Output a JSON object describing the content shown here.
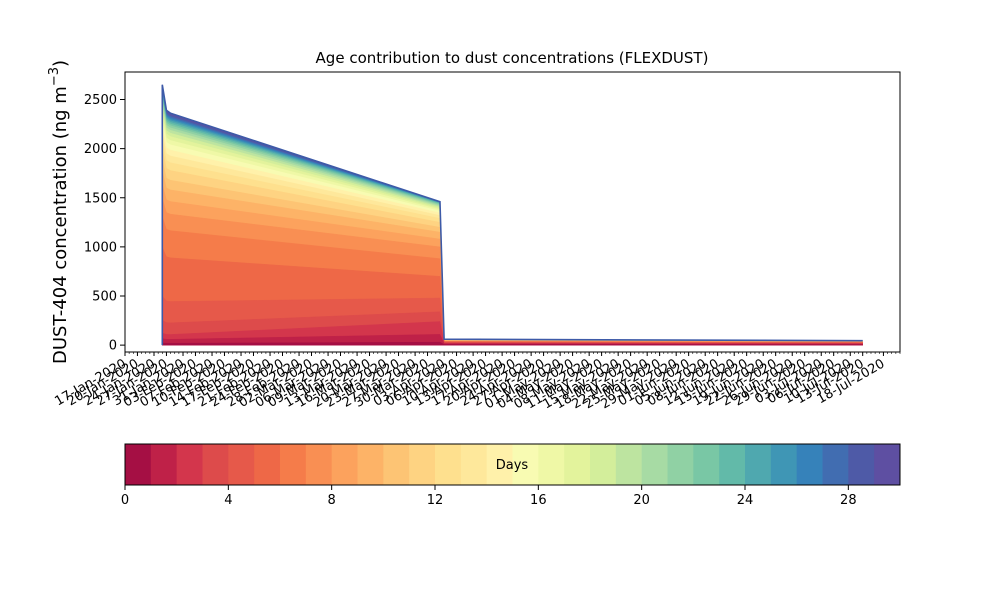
{
  "chart_data": [
    {
      "type": "area",
      "stacked": true,
      "title": "Age contribution to dust concentrations (FLEXDUST)",
      "ylabel_main": "DUST-404 concentration (ng m",
      "ylabel_exp": "−3",
      "ylabel_close": ")",
      "ylim": [
        -70,
        2780
      ],
      "yticks": [
        0,
        500,
        1000,
        1500,
        2000,
        2500
      ],
      "x_axis": {
        "start": "2020-01-17",
        "end": "2020-07-22",
        "days": 187,
        "tick_labels": [
          "17-Jan-2020",
          "20-Jan-2020",
          "24-Jan-2020",
          "27-Jan-2020",
          "31-Jan-2020",
          "03-Feb-2020",
          "07-Feb-2020",
          "10-Feb-2020",
          "14-Feb-2020",
          "17-Feb-2020",
          "21-Feb-2020",
          "24-Feb-2020",
          "28-Feb-2020",
          "02-Mar-2020",
          "06-Mar-2020",
          "09-Mar-2020",
          "13-Mar-2020",
          "16-Mar-2020",
          "20-Mar-2020",
          "23-Mar-2020",
          "27-Mar-2020",
          "30-Mar-2020",
          "03-Apr-2020",
          "06-Apr-2020",
          "10-Apr-2020",
          "13-Apr-2020",
          "17-Apr-2020",
          "20-Apr-2020",
          "24-Apr-2020",
          "27-Apr-2020",
          "01-May-2020",
          "04-May-2020",
          "08-May-2020",
          "11-May-2020",
          "15-May-2020",
          "18-May-2020",
          "22-May-2020",
          "25-May-2020",
          "29-May-2020",
          "01-Jun-2020",
          "05-Jun-2020",
          "08-Jun-2020",
          "12-Jun-2020",
          "15-Jun-2020",
          "19-Jun-2020",
          "22-Jun-2020",
          "26-Jun-2020",
          "29-Jun-2020",
          "03-Jul-2020",
          "06-Jul-2020",
          "10-Jul-2020",
          "13-Jul-2020",
          "18-Jul-2020"
        ]
      },
      "series_count": 30,
      "age_bin_days": 1,
      "total_profile": {
        "dates": [
          "2020-01-26",
          "2020-01-27",
          "2020-01-28",
          "2020-04-02",
          "2020-04-03",
          "2020-07-13"
        ],
        "values": [
          2650,
          2390,
          2360,
          1460,
          60,
          45
        ]
      },
      "age_boundaries_at_start": [
        0,
        20,
        60,
        110,
        230,
        450,
        900,
        1180,
        1350,
        1480,
        1600,
        1700,
        1800,
        1880,
        1950,
        2010,
        2065,
        2110,
        2150,
        2185,
        2215,
        2240,
        2262,
        2280,
        2298,
        2314,
        2328,
        2342,
        2356,
        2370,
        2390
      ],
      "age_boundaries_at_end": [
        0,
        30,
        110,
        240,
        340,
        480,
        700,
        880,
        1000,
        1080,
        1150,
        1200,
        1250,
        1290,
        1320,
        1345,
        1365,
        1380,
        1392,
        1404,
        1414,
        1423,
        1431,
        1438,
        1444,
        1449,
        1453,
        1456,
        1458,
        1459,
        1460
      ],
      "tail_boundaries": [
        0,
        8,
        16,
        22,
        27,
        32,
        36,
        39,
        42,
        44,
        46,
        48,
        50,
        51,
        52,
        53,
        54,
        55,
        55.5,
        56,
        56.5,
        57,
        57.5,
        58,
        58.5,
        59,
        59.3,
        59.6,
        59.8,
        59.9,
        60
      ]
    },
    {
      "type": "colorbar",
      "label": "Days",
      "range": [
        0,
        30
      ],
      "ticks": [
        0,
        4,
        8,
        12,
        16,
        20,
        24,
        28
      ],
      "colors": [
        "#a50f44",
        "#bf2148",
        "#d3364c",
        "#dd4b4b",
        "#e6594a",
        "#ee6847",
        "#f57c4a",
        "#f98f53",
        "#fca25d",
        "#fdb367",
        "#fdc474",
        "#fed382",
        "#fee08e",
        "#fee89b",
        "#fff1aa",
        "#f8fbb2",
        "#eff8a6",
        "#e3f39c",
        "#d3ee9b",
        "#bde4a0",
        "#a7dba4",
        "#90d1a4",
        "#79c7a5",
        "#62baa9",
        "#4fa8af",
        "#3f96b5",
        "#3682ba",
        "#416db1",
        "#4e5aa7",
        "#5e4fa2"
      ]
    }
  ]
}
